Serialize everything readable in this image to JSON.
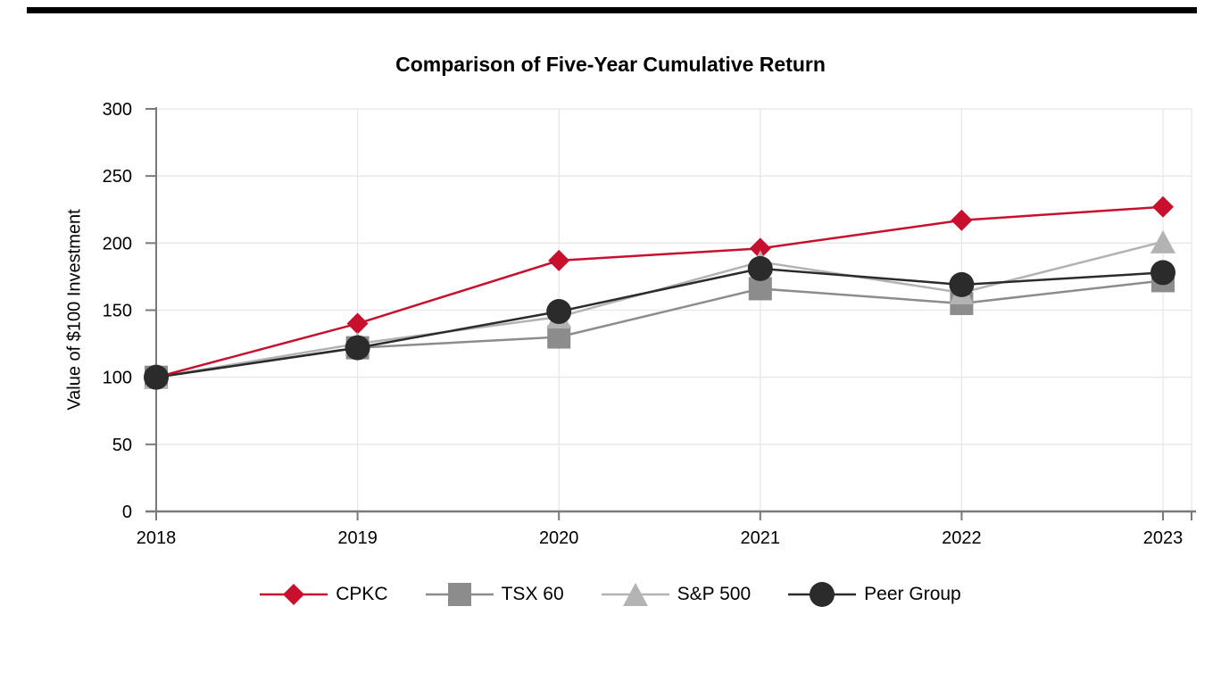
{
  "page": {
    "background": "#FFFFFF",
    "top_rule": true,
    "top_rule_color": "#000000"
  },
  "chart_data": {
    "type": "line",
    "title": "Comparison of Five-Year Cumulative Return",
    "xlabel": "",
    "ylabel": "Value of $100 Investment",
    "categories": [
      "2018",
      "2019",
      "2020",
      "2021",
      "2022",
      "2023"
    ],
    "yticks": [
      0,
      50,
      100,
      150,
      200,
      250,
      300
    ],
    "ylim": [
      0,
      300
    ],
    "grid": true,
    "legend_position": "bottom",
    "axis_color": "#7A7A7A",
    "grid_color": "#E7E7E7",
    "text_color": "#000000",
    "series": [
      {
        "name": "CPKC",
        "marker": "diamond",
        "color": "#C8102E",
        "values": [
          100,
          140,
          187,
          196,
          217,
          227
        ]
      },
      {
        "name": "TSX 60",
        "marker": "square",
        "color": "#8C8C8C",
        "values": [
          100,
          122,
          130,
          166,
          155,
          172
        ]
      },
      {
        "name": "S&P 500",
        "marker": "triangle",
        "color": "#B3B3B3",
        "values": [
          100,
          125,
          145,
          186,
          163,
          201
        ]
      },
      {
        "name": "Peer Group",
        "marker": "circle",
        "color": "#2B2B2B",
        "values": [
          100,
          122,
          149,
          181,
          169,
          178
        ]
      }
    ]
  }
}
